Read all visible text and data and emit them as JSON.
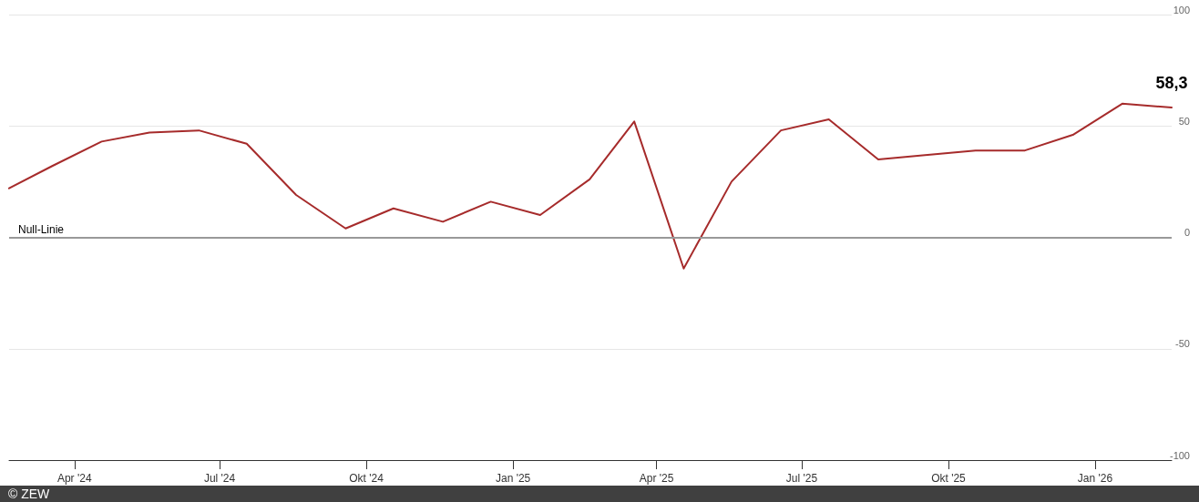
{
  "chart_data": {
    "type": "line",
    "x": [
      "2024-02-20",
      "2024-03-18",
      "2024-04-18",
      "2024-05-18",
      "2024-06-18",
      "2024-07-18",
      "2024-08-18",
      "2024-09-18",
      "2024-10-18",
      "2024-11-18",
      "2024-12-18",
      "2025-01-18",
      "2025-02-18",
      "2025-03-18",
      "2025-04-18",
      "2025-05-18",
      "2025-06-18",
      "2025-07-18",
      "2025-08-18",
      "2025-09-18",
      "2025-10-18",
      "2025-11-18",
      "2025-12-18",
      "2026-01-18",
      "2026-02-18"
    ],
    "series": [
      {
        "color": "#a62b2b",
        "values": [
          22,
          32,
          43,
          47,
          48,
          42,
          19,
          4,
          13,
          7,
          16,
          10,
          26,
          52,
          -14,
          25,
          48,
          53,
          35,
          37,
          39,
          39,
          46,
          60,
          58.3
        ],
        "value_labels": [
          null,
          null,
          null,
          null,
          null,
          null,
          null,
          null,
          null,
          null,
          null,
          null,
          null,
          null,
          null,
          null,
          null,
          null,
          null,
          null,
          null,
          null,
          null,
          null,
          "58,3"
        ]
      }
    ],
    "xlim": [
      "2024-02-20",
      "2026-02-18"
    ],
    "xticks": [
      {
        "value": "2024-04-01",
        "label": "Apr '24"
      },
      {
        "value": "2024-07-01",
        "label": "Jul '24"
      },
      {
        "value": "2024-10-01",
        "label": "Okt '24"
      },
      {
        "value": "2025-01-01",
        "label": "Jan '25"
      },
      {
        "value": "2025-04-01",
        "label": "Apr '25"
      },
      {
        "value": "2025-07-01",
        "label": "Jul '25"
      },
      {
        "value": "2025-10-01",
        "label": "Okt '25"
      },
      {
        "value": "2026-01-01",
        "label": "Jan '26"
      }
    ],
    "ylim": [
      -100,
      100
    ],
    "yticks": [
      -100,
      -50,
      0,
      50,
      100
    ],
    "grid": "y",
    "marker": "none",
    "line_style": "solid",
    "ref_lines": [
      {
        "axis": "y",
        "value": 0,
        "label": "Null-Linie",
        "color": "#999999"
      }
    ],
    "annotations": [
      "© ZEW"
    ]
  }
}
